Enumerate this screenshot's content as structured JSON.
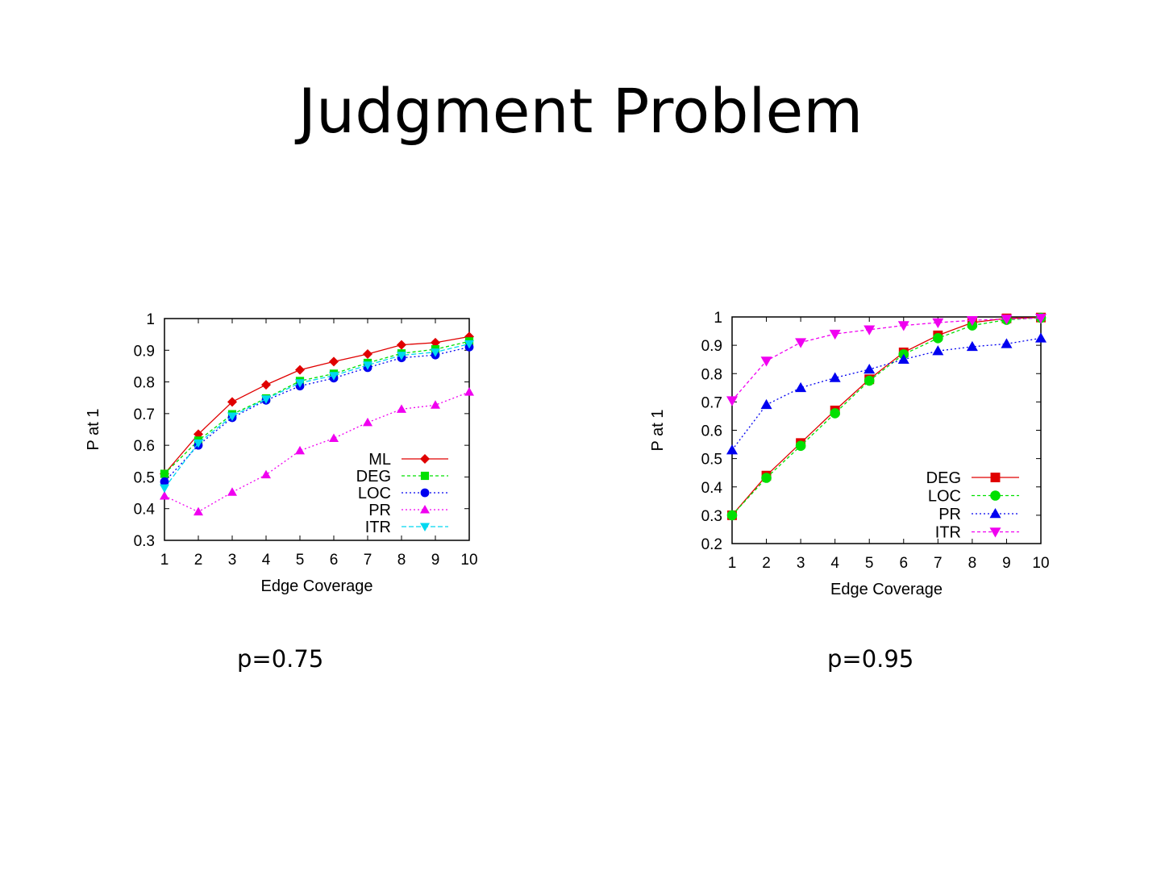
{
  "slide": {
    "title": "Judgment Problem",
    "captions": [
      "p=0.75",
      "p=0.95"
    ]
  },
  "chart_data": [
    {
      "type": "line",
      "title": "",
      "xlabel": "Edge Coverage",
      "ylabel": "P at 1",
      "xlim": [
        1,
        10
      ],
      "ylim": [
        0.3,
        1
      ],
      "x": [
        1,
        2,
        3,
        4,
        5,
        6,
        7,
        8,
        9,
        10
      ],
      "xticks": [
        "1",
        "2",
        "3",
        "4",
        "5",
        "6",
        "7",
        "8",
        "9",
        "10"
      ],
      "yticks": [
        "0.3",
        "0.4",
        "0.5",
        "0.6",
        "0.7",
        "0.8",
        "0.9",
        "1"
      ],
      "grid": false,
      "legend": "bottom-right",
      "series": [
        {
          "name": "ML",
          "color": "#e00000",
          "marker": "diamond",
          "dash": "",
          "values": [
            0.51,
            0.635,
            0.737,
            0.791,
            0.838,
            0.864,
            0.888,
            0.917,
            0.924,
            0.943
          ]
        },
        {
          "name": "DEG",
          "color": "#00e000",
          "marker": "square",
          "dash": "4,3",
          "values": [
            0.51,
            0.615,
            0.698,
            0.748,
            0.803,
            0.826,
            0.86,
            0.89,
            0.903,
            0.928
          ]
        },
        {
          "name": "LOC",
          "color": "#0000f0",
          "marker": "circle",
          "dash": "2,3",
          "values": [
            0.485,
            0.6,
            0.687,
            0.742,
            0.787,
            0.812,
            0.845,
            0.876,
            0.885,
            0.91
          ]
        },
        {
          "name": "PR",
          "color": "#f000f0",
          "marker": "triangle-up",
          "dash": "2,3",
          "values": [
            0.44,
            0.39,
            0.452,
            0.507,
            0.583,
            0.622,
            0.672,
            0.714,
            0.727,
            0.768
          ]
        },
        {
          "name": "ITR",
          "color": "#00d8f0",
          "marker": "triangle-down",
          "dash": "6,3",
          "values": [
            0.465,
            0.607,
            0.692,
            0.746,
            0.797,
            0.82,
            0.853,
            0.884,
            0.894,
            0.92
          ]
        }
      ]
    },
    {
      "type": "line",
      "title": "",
      "xlabel": "Edge Coverage",
      "ylabel": "P at 1",
      "xlim": [
        1,
        10
      ],
      "ylim": [
        0.2,
        1
      ],
      "x": [
        1,
        2,
        3,
        4,
        5,
        6,
        7,
        8,
        9,
        10
      ],
      "xticks": [
        "1",
        "2",
        "3",
        "4",
        "5",
        "6",
        "7",
        "8",
        "9",
        "10"
      ],
      "yticks": [
        "0.2",
        "0.3",
        "0.4",
        "0.5",
        "0.6",
        "0.7",
        "0.8",
        "0.9",
        "1"
      ],
      "grid": false,
      "legend": "bottom-right",
      "series": [
        {
          "name": "DEG",
          "color": "#e00000",
          "marker": "square",
          "dash": "",
          "values": [
            0.3,
            0.44,
            0.555,
            0.67,
            0.78,
            0.875,
            0.935,
            0.98,
            0.995,
            0.998
          ]
        },
        {
          "name": "LOC",
          "color": "#00e000",
          "marker": "circle",
          "dash": "4,3",
          "values": [
            0.3,
            0.432,
            0.545,
            0.66,
            0.775,
            0.868,
            0.925,
            0.97,
            0.99,
            0.997
          ]
        },
        {
          "name": "PR",
          "color": "#0000f0",
          "marker": "triangle-up",
          "dash": "2,3",
          "values": [
            0.53,
            0.69,
            0.75,
            0.785,
            0.815,
            0.85,
            0.88,
            0.895,
            0.905,
            0.925
          ]
        },
        {
          "name": "ITR",
          "color": "#f000f0",
          "marker": "triangle-down",
          "dash": "4,3",
          "values": [
            0.705,
            0.845,
            0.91,
            0.94,
            0.955,
            0.97,
            0.98,
            0.988,
            0.993,
            0.996
          ]
        }
      ]
    }
  ]
}
